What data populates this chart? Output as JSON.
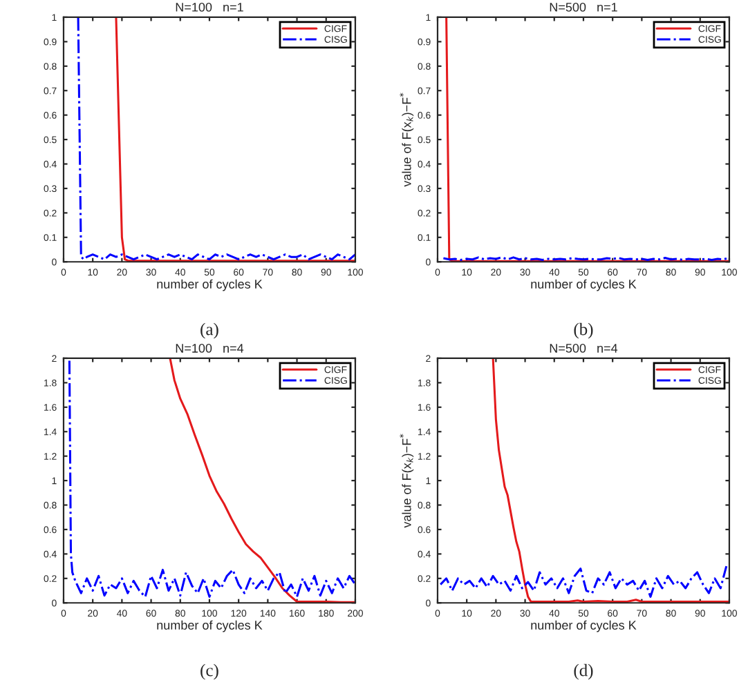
{
  "chart_data": [
    {
      "type": "line",
      "title": "N=100   n=1",
      "xlabel": "number of cycles K",
      "xlim": [
        0,
        100
      ],
      "ylim": [
        0,
        1
      ],
      "xticks": [
        0,
        10,
        20,
        30,
        40,
        50,
        60,
        70,
        80,
        90,
        100
      ],
      "yticks": [
        0,
        0.1,
        0.2,
        0.3,
        0.4,
        0.5,
        0.6,
        0.7,
        0.8,
        0.9,
        1
      ],
      "legend": "top right",
      "grid": false,
      "annotations": [
        "(a)"
      ],
      "series": [
        {
          "name": "CIGF",
          "color": "#e41a1c",
          "line_style": "solid",
          "x": [
            18,
            19,
            20,
            21,
            22,
            25,
            30,
            35,
            40,
            45,
            50,
            55,
            60,
            65,
            70,
            75,
            80,
            85,
            90,
            95,
            100
          ],
          "values": [
            1.0,
            0.55,
            0.1,
            0.01,
            0.005,
            0.004,
            0.004,
            0.004,
            0.004,
            0.004,
            0.004,
            0.004,
            0.004,
            0.004,
            0.004,
            0.004,
            0.004,
            0.004,
            0.004,
            0.004,
            0.004
          ]
        },
        {
          "name": "CISG",
          "color": "#0000ff",
          "line_style": "dashdot",
          "x": [
            5,
            6,
            7,
            8,
            10,
            12,
            14,
            16,
            18,
            20,
            22,
            24,
            26,
            28,
            30,
            32,
            34,
            36,
            38,
            40,
            42,
            44,
            46,
            48,
            50,
            52,
            54,
            56,
            58,
            60,
            62,
            64,
            66,
            68,
            70,
            72,
            74,
            76,
            78,
            80,
            82,
            84,
            86,
            88,
            90,
            92,
            94,
            96,
            98,
            100
          ],
          "values": [
            1.0,
            0.02,
            0.01,
            0.02,
            0.03,
            0.02,
            0.01,
            0.03,
            0.02,
            0.03,
            0.02,
            0.01,
            0.02,
            0.03,
            0.02,
            0.01,
            0.02,
            0.03,
            0.02,
            0.03,
            0.02,
            0.01,
            0.03,
            0.02,
            0.01,
            0.03,
            0.02,
            0.03,
            0.02,
            0.01,
            0.02,
            0.03,
            0.02,
            0.03,
            0.02,
            0.01,
            0.02,
            0.03,
            0.02,
            0.02,
            0.03,
            0.01,
            0.02,
            0.03,
            0.02,
            0.01,
            0.03,
            0.02,
            0.01,
            0.03
          ]
        }
      ]
    },
    {
      "type": "line",
      "title": "N=500   n=1",
      "xlabel": "number of cycles K",
      "ylabel": "value of F(x$_{k}$)−F$^{*}$",
      "xlim": [
        0,
        100
      ],
      "ylim": [
        0,
        1
      ],
      "xticks": [
        0,
        10,
        20,
        30,
        40,
        50,
        60,
        70,
        80,
        90,
        100
      ],
      "yticks": [
        0,
        0.1,
        0.2,
        0.3,
        0.4,
        0.5,
        0.6,
        0.7,
        0.8,
        0.9,
        1
      ],
      "legend": "top right",
      "grid": false,
      "annotations": [
        "(b)"
      ],
      "series": [
        {
          "name": "CIGF",
          "color": "#e41a1c",
          "line_style": "solid",
          "x": [
            3,
            4,
            5,
            10,
            20,
            30,
            40,
            50,
            60,
            70,
            80,
            90,
            100
          ],
          "values": [
            1.0,
            0.01,
            0.003,
            0.003,
            0.003,
            0.003,
            0.003,
            0.003,
            0.003,
            0.003,
            0.003,
            0.003,
            0.003
          ]
        },
        {
          "name": "CISG",
          "color": "#0000ff",
          "line_style": "dashdot",
          "x": [
            2,
            4,
            6,
            8,
            10,
            12,
            14,
            16,
            18,
            20,
            22,
            24,
            26,
            28,
            30,
            32,
            34,
            36,
            38,
            40,
            42,
            44,
            46,
            48,
            50,
            52,
            54,
            56,
            58,
            60,
            62,
            64,
            66,
            68,
            70,
            72,
            74,
            76,
            78,
            80,
            82,
            84,
            86,
            88,
            90,
            92,
            94,
            96,
            98,
            100
          ],
          "values": [
            0.015,
            0.01,
            0.012,
            0.008,
            0.012,
            0.01,
            0.018,
            0.01,
            0.015,
            0.012,
            0.018,
            0.01,
            0.018,
            0.01,
            0.015,
            0.01,
            0.012,
            0.008,
            0.012,
            0.01,
            0.012,
            0.01,
            0.015,
            0.012,
            0.01,
            0.012,
            0.01,
            0.01,
            0.015,
            0.012,
            0.016,
            0.01,
            0.012,
            0.01,
            0.012,
            0.008,
            0.012,
            0.01,
            0.016,
            0.01,
            0.012,
            0.008,
            0.012,
            0.01,
            0.01,
            0.012,
            0.008,
            0.012,
            0.01,
            0.016
          ]
        }
      ]
    },
    {
      "type": "line",
      "title": "N=100   n=4",
      "xlabel": "number of cycles K",
      "xlim": [
        0,
        200
      ],
      "ylim": [
        0,
        2
      ],
      "xticks": [
        0,
        20,
        40,
        60,
        80,
        100,
        120,
        140,
        160,
        180,
        200
      ],
      "yticks": [
        0,
        0.2,
        0.4,
        0.6,
        0.8,
        1,
        1.2,
        1.4,
        1.6,
        1.8,
        2
      ],
      "legend": "top right",
      "grid": false,
      "annotations": [
        "(c)"
      ],
      "series": [
        {
          "name": "CIGF",
          "color": "#e41a1c",
          "line_style": "solid",
          "x": [
            73,
            76,
            80,
            85,
            90,
            95,
            100,
            105,
            110,
            115,
            120,
            125,
            130,
            135,
            140,
            145,
            150,
            155,
            160,
            170,
            180,
            190,
            200
          ],
          "values": [
            2.0,
            1.82,
            1.67,
            1.54,
            1.37,
            1.21,
            1.04,
            0.91,
            0.81,
            0.69,
            0.58,
            0.48,
            0.42,
            0.37,
            0.29,
            0.21,
            0.12,
            0.06,
            0.01,
            0.01,
            0.01,
            0.005,
            0.005
          ]
        },
        {
          "name": "CISG",
          "color": "#0000ff",
          "line_style": "dashdot",
          "x": [
            4,
            5,
            6,
            8,
            12,
            16,
            20,
            24,
            28,
            32,
            36,
            40,
            44,
            48,
            52,
            56,
            60,
            64,
            68,
            72,
            76,
            80,
            84,
            88,
            92,
            96,
            100,
            104,
            108,
            112,
            116,
            120,
            124,
            128,
            132,
            136,
            140,
            144,
            148,
            152,
            156,
            160,
            164,
            168,
            172,
            176,
            180,
            184,
            188,
            192,
            196,
            200
          ],
          "values": [
            1.98,
            0.4,
            0.25,
            0.18,
            0.08,
            0.2,
            0.1,
            0.22,
            0.06,
            0.15,
            0.12,
            0.2,
            0.08,
            0.18,
            0.1,
            0.05,
            0.22,
            0.12,
            0.27,
            0.1,
            0.2,
            0.06,
            0.25,
            0.14,
            0.08,
            0.2,
            0.05,
            0.18,
            0.12,
            0.22,
            0.27,
            0.15,
            0.08,
            0.2,
            0.12,
            0.18,
            0.1,
            0.2,
            0.25,
            0.08,
            0.15,
            0.05,
            0.2,
            0.1,
            0.22,
            0.06,
            0.18,
            0.08,
            0.2,
            0.12,
            0.22,
            0.15
          ]
        }
      ]
    },
    {
      "type": "line",
      "title": "N=500   n=4",
      "xlabel": "number of cycles K",
      "ylabel": "value of F(x$_{k}$)−F$^{*}$",
      "xlim": [
        0,
        100
      ],
      "ylim": [
        0,
        2
      ],
      "xticks": [
        0,
        10,
        20,
        30,
        40,
        50,
        60,
        70,
        80,
        90,
        100
      ],
      "yticks": [
        0,
        0.2,
        0.4,
        0.6,
        0.8,
        1,
        1.2,
        1.4,
        1.6,
        1.8,
        2
      ],
      "legend": "top right",
      "grid": false,
      "annotations": [
        "(d)"
      ],
      "series": [
        {
          "name": "CIGF",
          "color": "#e41a1c",
          "line_style": "solid",
          "x": [
            19,
            20,
            21,
            22,
            23,
            24,
            25,
            26,
            27,
            28,
            29,
            30,
            31,
            32,
            35,
            40,
            45,
            48,
            50,
            55,
            60,
            65,
            68,
            70,
            75,
            80,
            90,
            100
          ],
          "values": [
            2.0,
            1.5,
            1.25,
            1.1,
            0.95,
            0.88,
            0.75,
            0.62,
            0.5,
            0.42,
            0.28,
            0.15,
            0.05,
            0.01,
            0.01,
            0.01,
            0.01,
            0.02,
            0.01,
            0.015,
            0.01,
            0.01,
            0.025,
            0.01,
            0.01,
            0.01,
            0.01,
            0.01
          ]
        },
        {
          "name": "CISG",
          "color": "#0000ff",
          "line_style": "dashdot",
          "x": [
            1,
            3,
            5,
            7,
            9,
            11,
            13,
            15,
            17,
            19,
            21,
            23,
            25,
            27,
            29,
            31,
            33,
            35,
            37,
            39,
            41,
            43,
            45,
            47,
            49,
            51,
            53,
            55,
            57,
            59,
            61,
            63,
            65,
            67,
            69,
            71,
            73,
            75,
            77,
            79,
            81,
            83,
            85,
            87,
            89,
            91,
            93,
            95,
            97,
            99
          ],
          "values": [
            0.15,
            0.2,
            0.1,
            0.2,
            0.15,
            0.18,
            0.12,
            0.2,
            0.13,
            0.22,
            0.15,
            0.18,
            0.1,
            0.22,
            0.12,
            0.17,
            0.1,
            0.25,
            0.15,
            0.2,
            0.12,
            0.2,
            0.08,
            0.22,
            0.28,
            0.1,
            0.08,
            0.2,
            0.15,
            0.25,
            0.12,
            0.2,
            0.15,
            0.18,
            0.1,
            0.18,
            0.05,
            0.2,
            0.12,
            0.22,
            0.15,
            0.18,
            0.12,
            0.2,
            0.25,
            0.15,
            0.08,
            0.2,
            0.12,
            0.3
          ]
        }
      ]
    }
  ]
}
